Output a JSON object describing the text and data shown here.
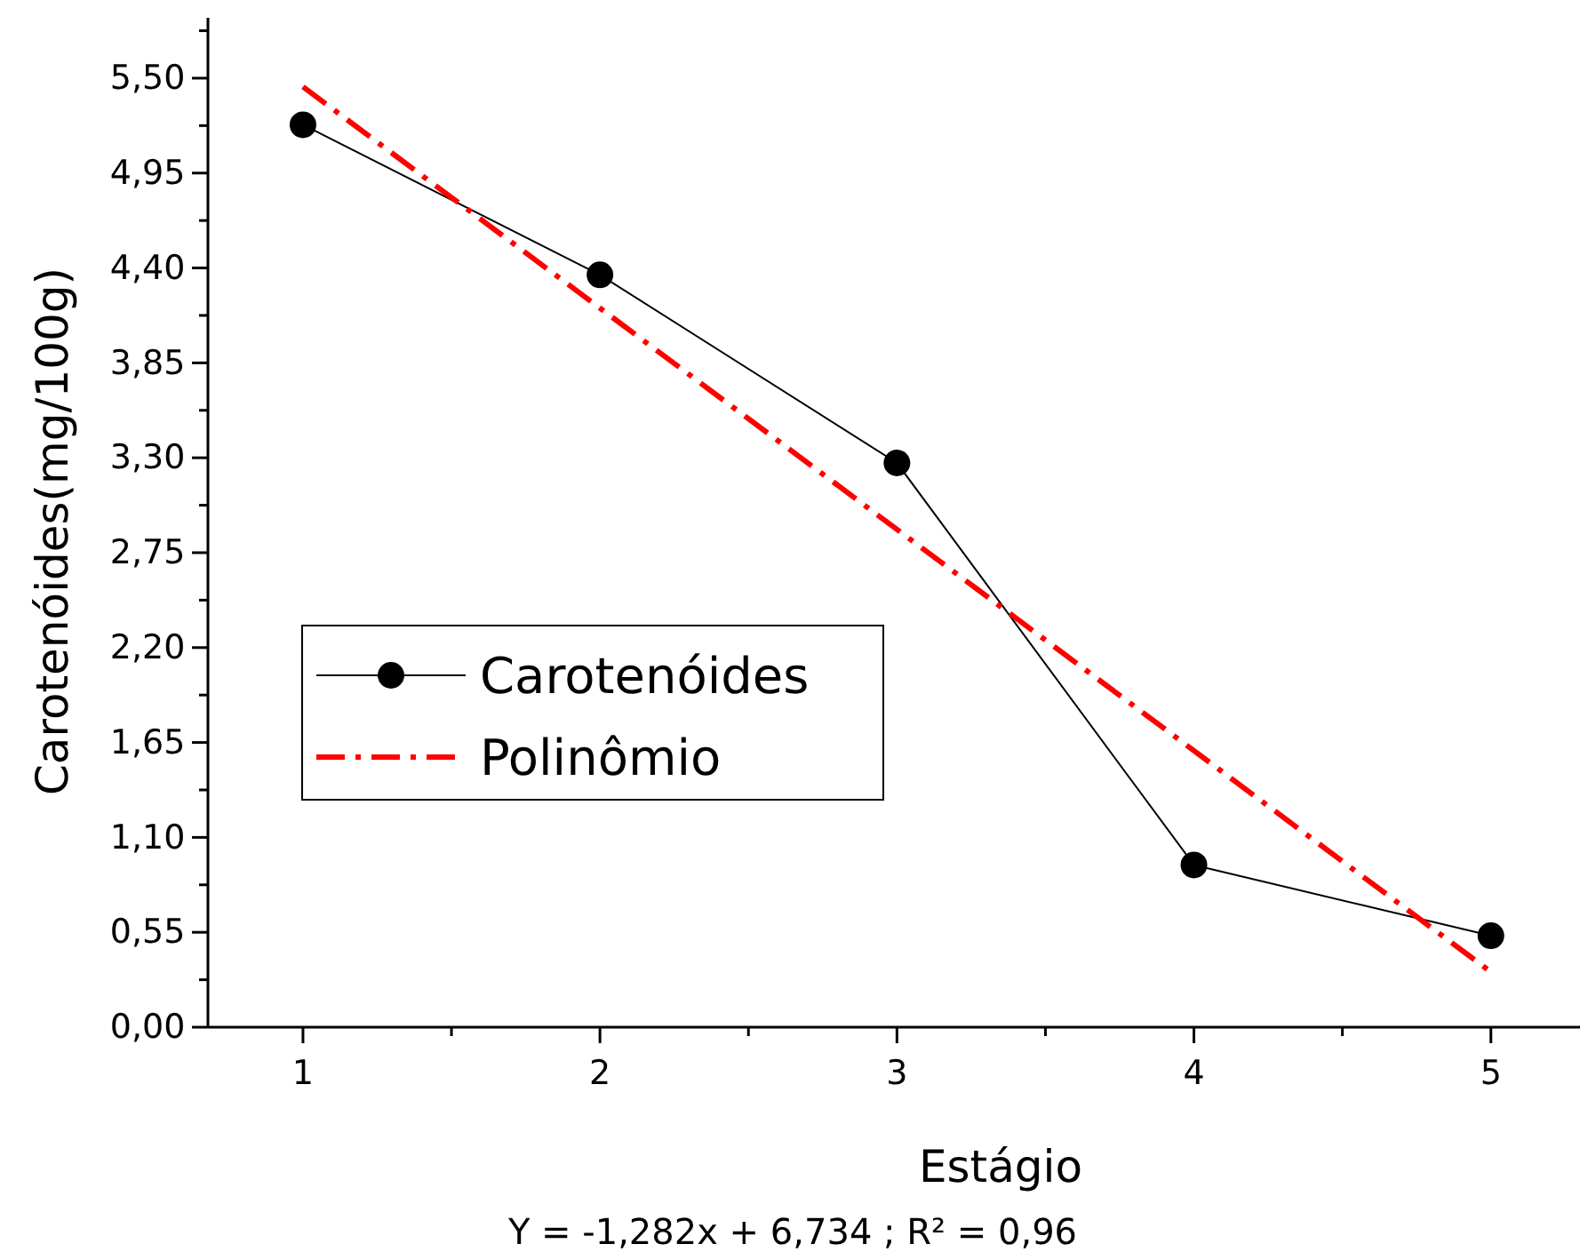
{
  "chart_data": {
    "type": "line",
    "xlabel": "Estágio",
    "ylabel": "Carotenóides(mg/100g)",
    "x": [
      1,
      2,
      3,
      4,
      5
    ],
    "series": [
      {
        "name": "Carotenóides",
        "color": "#000000",
        "values": [
          5.23,
          4.36,
          3.27,
          0.94,
          0.53
        ],
        "marker": "circle",
        "line_style": "solid"
      },
      {
        "name": "Polinômio",
        "color": "#ff0000",
        "x": [
          1,
          5
        ],
        "values": [
          5.45,
          0.32
        ],
        "marker": "none",
        "line_style": "dashed"
      }
    ],
    "xlim": [
      0.68,
      5.3
    ],
    "ylim": [
      0,
      5.85
    ],
    "xticks": [
      1,
      {
        "value": 1.5,
        "label": null
      },
      2,
      {
        "value": 2.5,
        "label": null
      },
      3,
      {
        "value": 3.5,
        "label": null
      },
      4,
      {
        "value": 4.5,
        "label": null
      },
      5
    ],
    "yticks": [
      {
        "value": 0,
        "label": "0,00"
      },
      {
        "value": 0.275,
        "label": null
      },
      {
        "value": 0.55,
        "label": "0,55"
      },
      {
        "value": 0.825,
        "label": null
      },
      {
        "value": 1.1,
        "label": "1,10"
      },
      {
        "value": 1.375,
        "label": null
      },
      {
        "value": 1.65,
        "label": "1,65"
      },
      {
        "value": 1.925,
        "label": null
      },
      {
        "value": 2.2,
        "label": "2,20"
      },
      {
        "value": 2.475,
        "label": null
      },
      {
        "value": 2.75,
        "label": "2,75"
      },
      {
        "value": 3.025,
        "label": null
      },
      {
        "value": 3.3,
        "label": "3,30"
      },
      {
        "value": 3.575,
        "label": null
      },
      {
        "value": 3.85,
        "label": "3,85"
      },
      {
        "value": 4.125,
        "label": null
      },
      {
        "value": 4.4,
        "label": "4,40"
      },
      {
        "value": 4.675,
        "label": null
      },
      {
        "value": 4.95,
        "label": "4,95"
      },
      {
        "value": 5.225,
        "label": null
      },
      {
        "value": 5.5,
        "label": "5,50"
      },
      {
        "value": 5.775,
        "label": null
      }
    ],
    "grid": false,
    "legend": "left",
    "annotations": [
      "Y =  -1,282x + 6,734 ; R² = 0,96"
    ]
  }
}
